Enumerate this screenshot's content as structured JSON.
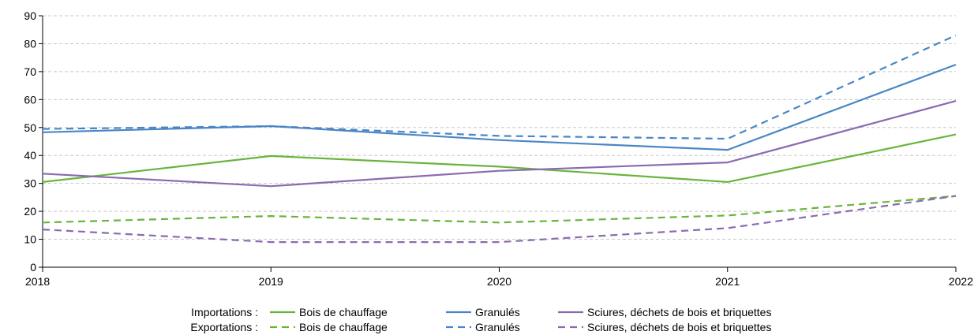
{
  "chart_data": {
    "type": "line",
    "title": "",
    "xlabel": "",
    "ylabel": "",
    "x": [
      "2018",
      "2019",
      "2020",
      "2021",
      "2022"
    ],
    "ylim": [
      0,
      90
    ],
    "yticks": [
      0,
      10,
      20,
      30,
      40,
      50,
      60,
      70,
      80,
      90
    ],
    "grid": "horizontal-dashed",
    "legend_position": "bottom",
    "legend_groups": [
      {
        "label": "Importations :",
        "style": "solid"
      },
      {
        "label": "Exportations :",
        "style": "dashed"
      }
    ],
    "series": [
      {
        "name": "Bois de chauffage",
        "group": "Importations :",
        "style": "solid",
        "color": "#6ab43e",
        "values": [
          30.5,
          39.8,
          36.0,
          30.5,
          47.5
        ]
      },
      {
        "name": "Granulés",
        "group": "Importations :",
        "style": "solid",
        "color": "#4a86c5",
        "values": [
          48.3,
          50.5,
          45.5,
          42.0,
          72.5
        ]
      },
      {
        "name": "Sciures, déchets de bois et briquettes",
        "group": "Importations :",
        "style": "solid",
        "color": "#8a6bb0",
        "values": [
          33.5,
          29.0,
          34.5,
          37.5,
          59.5
        ]
      },
      {
        "name": "Bois de chauffage",
        "group": "Exportations :",
        "style": "dashed",
        "color": "#6ab43e",
        "values": [
          16.0,
          18.3,
          16.0,
          18.5,
          25.5
        ]
      },
      {
        "name": "Granulés",
        "group": "Exportations :",
        "style": "dashed",
        "color": "#4a86c5",
        "values": [
          49.5,
          50.5,
          47.0,
          46.0,
          83.0
        ]
      },
      {
        "name": "Sciures, déchets de bois et briquettes",
        "group": "Exportations :",
        "style": "dashed",
        "color": "#8a6bb0",
        "values": [
          13.5,
          9.0,
          9.0,
          14.0,
          25.5
        ]
      }
    ]
  }
}
